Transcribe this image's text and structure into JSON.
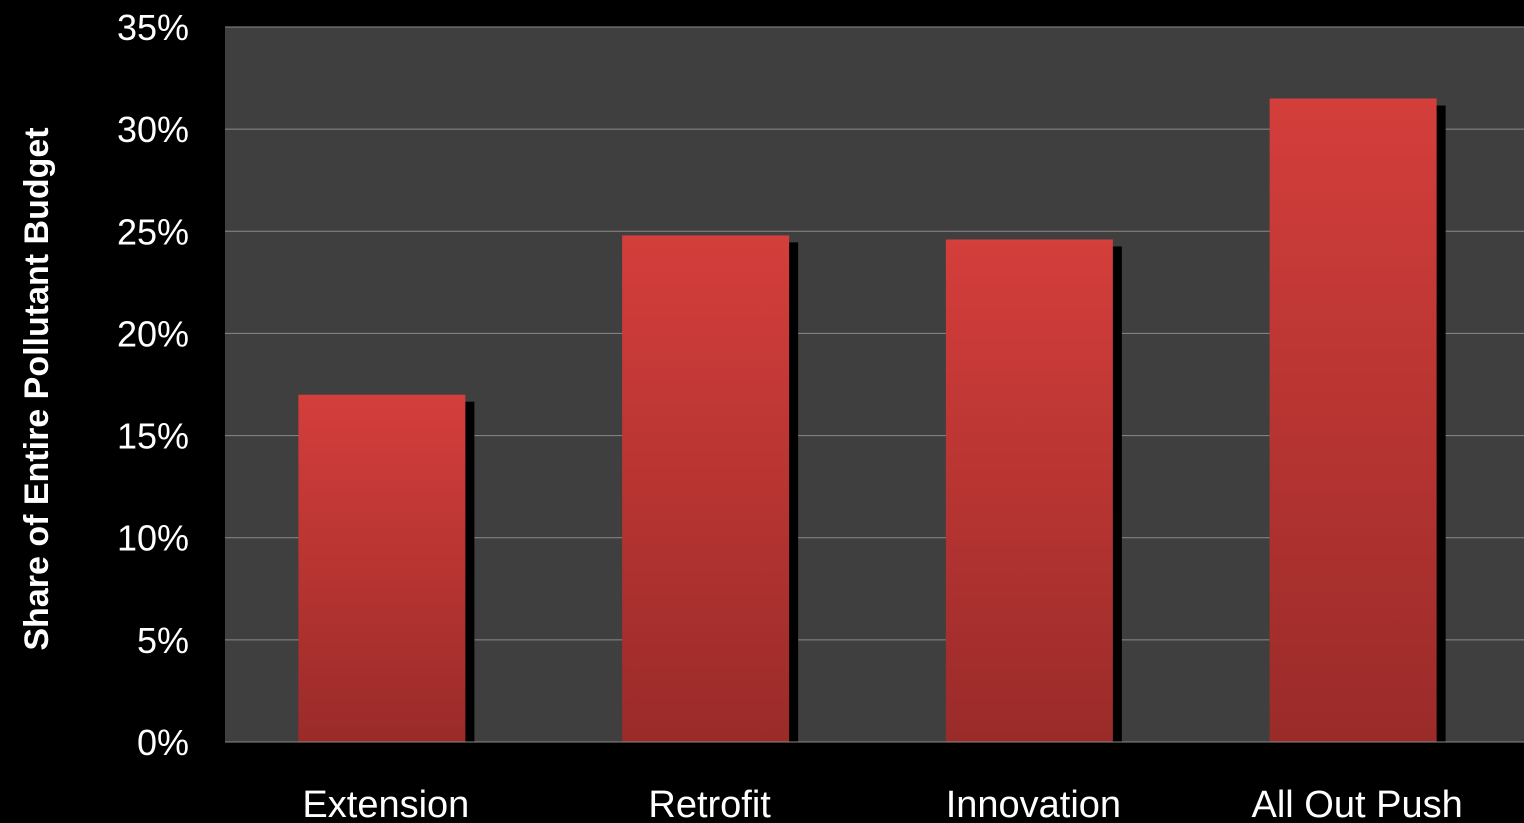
{
  "chart_data": {
    "type": "bar",
    "categories": [
      "Extension",
      "Retrofit",
      "Innovation",
      "All Out Push"
    ],
    "values": [
      17.0,
      24.8,
      24.6,
      31.5
    ],
    "ylabel": "Share of Entire Pollutant Budget",
    "xlabel": "",
    "ylim": [
      0,
      35
    ],
    "yticks": [
      0,
      5,
      10,
      15,
      20,
      25,
      30,
      35
    ],
    "ytick_labels": [
      "0%",
      "5%",
      "10%",
      "15%",
      "20%",
      "25%",
      "30%",
      "35%"
    ],
    "grid": true,
    "legend": "none",
    "colors": {
      "background": "#000000",
      "plot_area": "#3f3f3f",
      "gridline": "#8a8a8a",
      "bar_top": "#d43e3b",
      "bar_bottom": "#9a2b29",
      "bar_shadow": "#000000",
      "text": "#ffffff"
    }
  }
}
